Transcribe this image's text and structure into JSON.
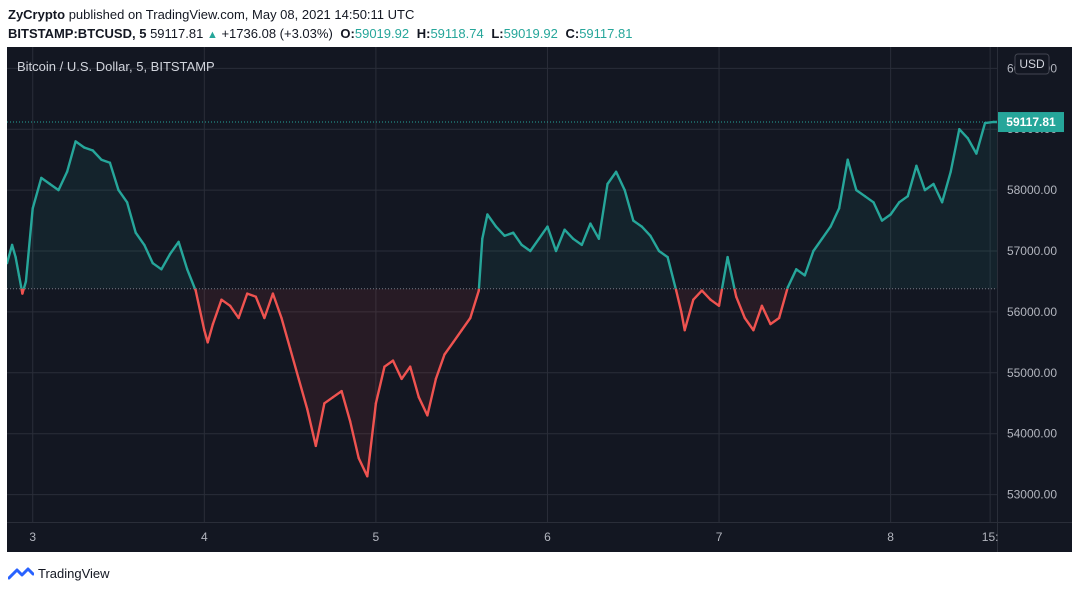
{
  "header": {
    "author": "ZyCrypto",
    "published_text": "published on TradingView.com, May 08, 2021 14:50:11 UTC",
    "symbol": "BITSTAMP:BTCUSD, 5",
    "last": "59117.81",
    "change": "+1736.08 (+3.03%)",
    "open_label": "O:",
    "open": "59019.92",
    "high_label": "H:",
    "high": "59118.74",
    "low_label": "L:",
    "low": "59019.92",
    "close_label": "C:",
    "close": "59117.81"
  },
  "footer": {
    "brand": "TradingView"
  },
  "colors": {
    "background": "#131722",
    "up": "#26a69a",
    "down": "#ef5350",
    "grid": "#2a2e39",
    "text": "#b2b5be"
  },
  "chart_data": {
    "type": "line",
    "title": "Bitcoin / U.S. Dollar, 5, BITSTAMP",
    "currency": "USD",
    "last_value_label": "59117.81",
    "last_value": 59117.81,
    "baseline": 56380,
    "ylim": [
      52550,
      60350
    ],
    "xlim": [
      2.85,
      8.62
    ],
    "y_ticks": [
      {
        "value": 53000,
        "label": "53000.00"
      },
      {
        "value": 54000,
        "label": "54000.00"
      },
      {
        "value": 55000,
        "label": "55000.00"
      },
      {
        "value": 56000,
        "label": "56000.00"
      },
      {
        "value": 57000,
        "label": "57000.00"
      },
      {
        "value": 58000,
        "label": "58000.00"
      },
      {
        "value": 59000,
        "label": "59000.00"
      },
      {
        "value": 60000,
        "label": "60000.00"
      }
    ],
    "x_ticks": [
      {
        "value": 3,
        "label": "3"
      },
      {
        "value": 4,
        "label": "4"
      },
      {
        "value": 5,
        "label": "5"
      },
      {
        "value": 6,
        "label": "6"
      },
      {
        "value": 7,
        "label": "7"
      },
      {
        "value": 8,
        "label": "8"
      },
      {
        "value": 8.58,
        "label": "15:"
      }
    ],
    "x": [
      2.85,
      2.88,
      2.9,
      2.92,
      2.94,
      2.96,
      3.0,
      3.05,
      3.1,
      3.15,
      3.2,
      3.25,
      3.3,
      3.35,
      3.4,
      3.45,
      3.5,
      3.55,
      3.6,
      3.65,
      3.7,
      3.75,
      3.8,
      3.85,
      3.9,
      3.95,
      4.0,
      4.02,
      4.05,
      4.1,
      4.15,
      4.2,
      4.25,
      4.3,
      4.35,
      4.4,
      4.45,
      4.5,
      4.55,
      4.6,
      4.65,
      4.7,
      4.75,
      4.8,
      4.85,
      4.9,
      4.95,
      5.0,
      5.05,
      5.1,
      5.15,
      5.2,
      5.25,
      5.3,
      5.35,
      5.4,
      5.45,
      5.5,
      5.55,
      5.6,
      5.62,
      5.65,
      5.7,
      5.75,
      5.8,
      5.85,
      5.9,
      5.95,
      6.0,
      6.05,
      6.1,
      6.15,
      6.2,
      6.25,
      6.3,
      6.35,
      6.4,
      6.45,
      6.5,
      6.55,
      6.6,
      6.65,
      6.7,
      6.75,
      6.78,
      6.8,
      6.85,
      6.9,
      6.95,
      7.0,
      7.05,
      7.1,
      7.15,
      7.2,
      7.25,
      7.3,
      7.35,
      7.4,
      7.45,
      7.5,
      7.55,
      7.6,
      7.65,
      7.7,
      7.75,
      7.8,
      7.85,
      7.9,
      7.95,
      8.0,
      8.05,
      8.1,
      8.15,
      8.2,
      8.25,
      8.3,
      8.35,
      8.4,
      8.45,
      8.5,
      8.55,
      8.6,
      8.62
    ],
    "values": [
      56800,
      57100,
      56900,
      56600,
      56300,
      56500,
      57700,
      58200,
      58100,
      58000,
      58300,
      58800,
      58700,
      58650,
      58500,
      58450,
      58000,
      57800,
      57300,
      57100,
      56800,
      56700,
      56950,
      57150,
      56700,
      56350,
      55700,
      55500,
      55800,
      56200,
      56100,
      55900,
      56300,
      56250,
      55900,
      56300,
      55900,
      55400,
      54900,
      54400,
      53800,
      54500,
      54600,
      54700,
      54200,
      53600,
      53300,
      54500,
      55100,
      55200,
      54900,
      55100,
      54600,
      54300,
      54900,
      55300,
      55500,
      55700,
      55900,
      56350,
      57200,
      57600,
      57400,
      57250,
      57300,
      57100,
      57000,
      57200,
      57400,
      57000,
      57350,
      57200,
      57100,
      57450,
      57200,
      58100,
      58300,
      58000,
      57500,
      57400,
      57250,
      57000,
      56900,
      56350,
      56000,
      55700,
      56200,
      56350,
      56200,
      56100,
      56900,
      56250,
      55900,
      55700,
      56100,
      55800,
      55900,
      56400,
      56700,
      56600,
      57000,
      57200,
      57400,
      57700,
      58500,
      58000,
      57900,
      57800,
      57500,
      57600,
      57800,
      57900,
      58400,
      58000,
      58100,
      57800,
      58300,
      59000,
      58850,
      58600,
      59100,
      59120,
      59117.81
    ]
  }
}
